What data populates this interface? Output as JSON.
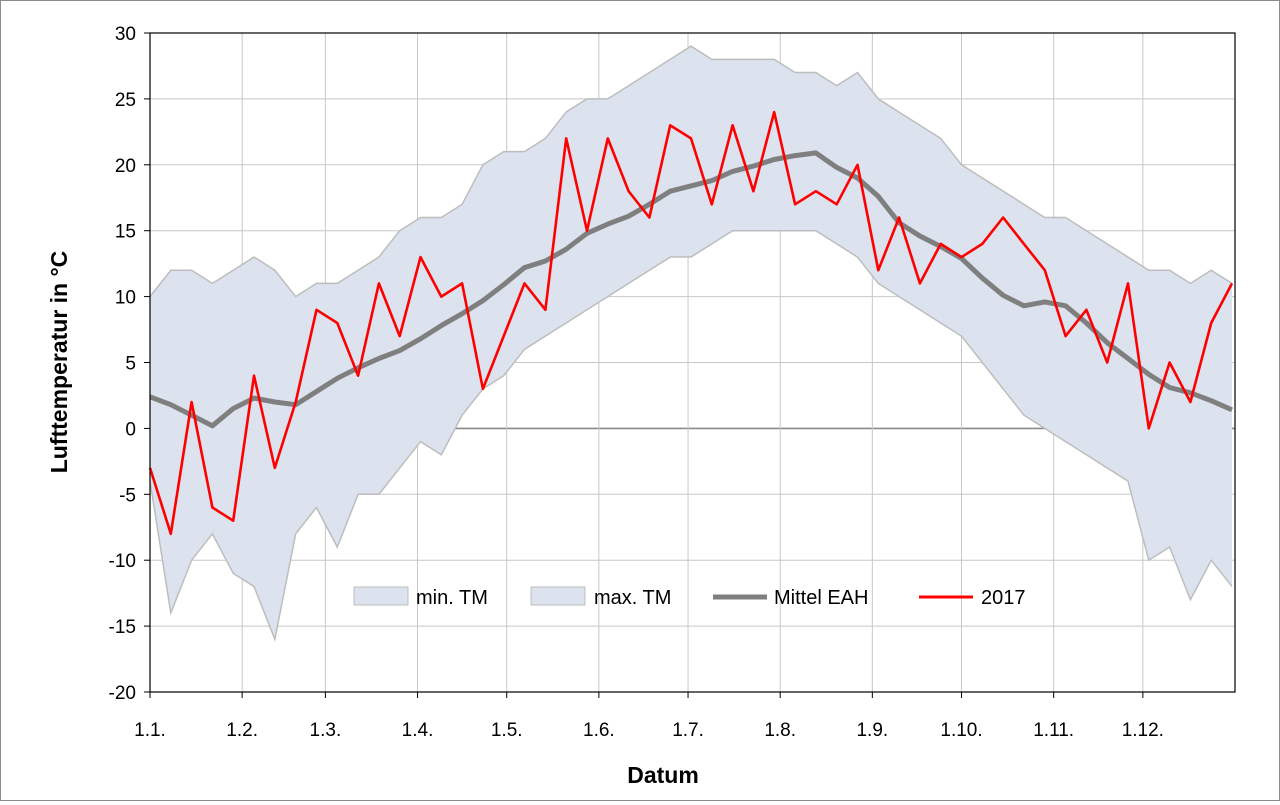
{
  "chart_data": {
    "type": "line",
    "title": "",
    "xlabel": "Datum",
    "ylabel": "Lufttemperatur in °C",
    "ylim": [
      -20,
      30
    ],
    "yticks": [
      30,
      25,
      20,
      15,
      10,
      5,
      0,
      -5,
      -10,
      -15,
      -20
    ],
    "xlim_day": [
      1,
      366
    ],
    "xticks": [
      "1.1.",
      "1.2.",
      "1.3.",
      "1.4.",
      "1.5.",
      "1.6.",
      "1.7.",
      "1.8.",
      "1.9.",
      "1.10.",
      "1.11.",
      "1.12."
    ],
    "xtick_days": [
      1,
      32,
      60,
      91,
      121,
      152,
      182,
      213,
      244,
      274,
      305,
      335
    ],
    "grid": true,
    "legend_placement": "bottom-center",
    "colors": {
      "band": "#dce3ef",
      "band_edge": "#bdbdbd",
      "mittel": "#7f7f7f",
      "year": "#ff0000",
      "grid": "#c8c8c8"
    },
    "series": [
      {
        "name": "min. TM",
        "kind": "band-lower",
        "x": [
          "1.1.",
          "8.1.",
          "15.1.",
          "22.1.",
          "29.1.",
          "5.2.",
          "12.2.",
          "19.2.",
          "26.2.",
          "5.3.",
          "12.3.",
          "19.3.",
          "26.3.",
          "2.4.",
          "9.4.",
          "16.4.",
          "23.4.",
          "30.4.",
          "7.5.",
          "14.5.",
          "21.5.",
          "28.5.",
          "4.6.",
          "11.6.",
          "18.6.",
          "25.6.",
          "2.7.",
          "9.7.",
          "16.7.",
          "23.7.",
          "30.7.",
          "6.8.",
          "13.8.",
          "20.8.",
          "27.8.",
          "3.9.",
          "10.9.",
          "17.9.",
          "24.9.",
          "1.10.",
          "8.10.",
          "15.10.",
          "22.10.",
          "29.10.",
          "5.11.",
          "12.11.",
          "19.11.",
          "26.11.",
          "3.12.",
          "10.12.",
          "17.12.",
          "24.12.",
          "31.12."
        ],
        "values": [
          -4,
          -14,
          -10,
          -8,
          -11,
          -12,
          -16,
          -8,
          -6,
          -9,
          -5,
          -5,
          -3,
          -1,
          -2,
          1,
          3,
          4,
          6,
          7,
          8,
          9,
          10,
          11,
          12,
          13,
          13,
          14,
          15,
          15,
          15,
          15,
          15,
          14,
          13,
          11,
          10,
          9,
          8,
          7,
          5,
          3,
          1,
          0,
          -1,
          -2,
          -3,
          -4,
          -10,
          -9,
          -13,
          -10,
          -12
        ]
      },
      {
        "name": "max. TM",
        "kind": "band-upper",
        "x": [
          "1.1.",
          "8.1.",
          "15.1.",
          "22.1.",
          "29.1.",
          "5.2.",
          "12.2.",
          "19.2.",
          "26.2.",
          "5.3.",
          "12.3.",
          "19.3.",
          "26.3.",
          "2.4.",
          "9.4.",
          "16.4.",
          "23.4.",
          "30.4.",
          "7.5.",
          "14.5.",
          "21.5.",
          "28.5.",
          "4.6.",
          "11.6.",
          "18.6.",
          "25.6.",
          "2.7.",
          "9.7.",
          "16.7.",
          "23.7.",
          "30.7.",
          "6.8.",
          "13.8.",
          "20.8.",
          "27.8.",
          "3.9.",
          "10.9.",
          "17.9.",
          "24.9.",
          "1.10.",
          "8.10.",
          "15.10.",
          "22.10.",
          "29.10.",
          "5.11.",
          "12.11.",
          "19.11.",
          "26.11.",
          "3.12.",
          "10.12.",
          "17.12.",
          "24.12.",
          "31.12."
        ],
        "values": [
          10,
          12,
          12,
          11,
          12,
          13,
          12,
          10,
          11,
          11,
          12,
          13,
          15,
          16,
          16,
          17,
          20,
          21,
          21,
          22,
          24,
          25,
          25,
          26,
          27,
          28,
          29,
          28,
          28,
          28,
          28,
          27,
          27,
          26,
          27,
          25,
          24,
          23,
          22,
          20,
          19,
          18,
          17,
          16,
          16,
          15,
          14,
          13,
          12,
          12,
          11,
          12,
          11
        ]
      },
      {
        "name": "Mittel EAH",
        "kind": "line",
        "x": [
          "1.1.",
          "8.1.",
          "15.1.",
          "22.1.",
          "29.1.",
          "5.2.",
          "12.2.",
          "19.2.",
          "26.2.",
          "5.3.",
          "12.3.",
          "19.3.",
          "26.3.",
          "2.4.",
          "9.4.",
          "16.4.",
          "23.4.",
          "30.4.",
          "7.5.",
          "14.5.",
          "21.5.",
          "28.5.",
          "4.6.",
          "11.6.",
          "18.6.",
          "25.6.",
          "2.7.",
          "9.7.",
          "16.7.",
          "23.7.",
          "30.7.",
          "6.8.",
          "13.8.",
          "20.8.",
          "27.8.",
          "3.9.",
          "10.9.",
          "17.9.",
          "24.9.",
          "1.10.",
          "8.10.",
          "15.10.",
          "22.10.",
          "29.10.",
          "5.11.",
          "12.11.",
          "19.11.",
          "26.11.",
          "3.12.",
          "10.12.",
          "17.12.",
          "24.12.",
          "31.12."
        ],
        "values": [
          2.4,
          1.8,
          1.0,
          0.2,
          1.5,
          2.3,
          2.0,
          1.8,
          2.8,
          3.8,
          4.6,
          5.3,
          5.9,
          6.8,
          7.8,
          8.7,
          9.7,
          10.9,
          12.2,
          12.7,
          13.6,
          14.8,
          15.5,
          16.1,
          17.0,
          18.0,
          18.4,
          18.8,
          19.5,
          19.9,
          20.4,
          20.7,
          20.9,
          19.8,
          19.0,
          17.6,
          15.6,
          14.6,
          13.8,
          12.9,
          11.4,
          10.1,
          9.3,
          9.6,
          9.3,
          8.0,
          6.5,
          5.3,
          4.1,
          3.1,
          2.7,
          2.1,
          1.4
        ]
      },
      {
        "name": "2017",
        "kind": "line",
        "x": [
          "1.1.",
          "8.1.",
          "15.1.",
          "22.1.",
          "29.1.",
          "5.2.",
          "12.2.",
          "19.2.",
          "26.2.",
          "5.3.",
          "12.3.",
          "19.3.",
          "26.3.",
          "2.4.",
          "9.4.",
          "16.4.",
          "23.4.",
          "30.4.",
          "7.5.",
          "14.5.",
          "21.5.",
          "28.5.",
          "4.6.",
          "11.6.",
          "18.6.",
          "25.6.",
          "2.7.",
          "9.7.",
          "16.7.",
          "23.7.",
          "30.7.",
          "6.8.",
          "13.8.",
          "20.8.",
          "27.8.",
          "3.9.",
          "10.9.",
          "17.9.",
          "24.9.",
          "1.10.",
          "8.10.",
          "15.10.",
          "22.10.",
          "29.10.",
          "5.11.",
          "12.11.",
          "19.11.",
          "26.11.",
          "3.12.",
          "10.12.",
          "17.12.",
          "24.12.",
          "31.12."
        ],
        "values": [
          -3,
          -8,
          2,
          -6,
          -7,
          4,
          -3,
          2,
          9,
          8,
          4,
          11,
          7,
          13,
          10,
          11,
          3,
          7,
          11,
          9,
          22,
          15,
          22,
          18,
          16,
          23,
          22,
          17,
          23,
          18,
          24,
          17,
          18,
          17,
          20,
          12,
          16,
          11,
          14,
          13,
          14,
          16,
          14,
          12,
          7,
          9,
          5,
          11,
          0,
          5,
          2,
          8,
          11
        ]
      }
    ]
  }
}
